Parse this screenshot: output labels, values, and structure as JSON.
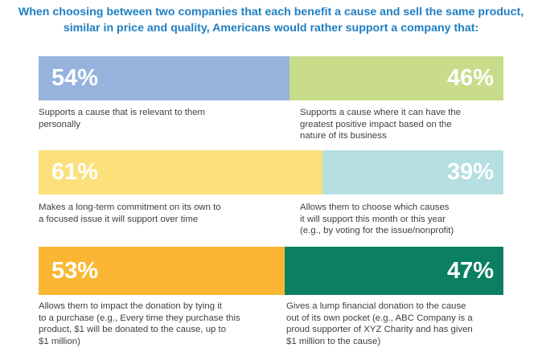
{
  "title_lines": [
    "When choosing between two companies that each benefit a cause and sell the same product,",
    "similar in price and quality, Americans would rather support a company that:"
  ],
  "chart_data": {
    "type": "bar",
    "orientation": "horizontal",
    "stacked": true,
    "title": "When choosing between two companies that each benefit a cause and sell the same product, similar in price and quality, Americans would rather support a company that:",
    "rows": [
      {
        "left": {
          "value": 54,
          "label": "54%",
          "color": "#97b3dd",
          "description": [
            "Supports a cause that is relevant to them",
            "personally"
          ]
        },
        "right": {
          "value": 46,
          "label": "46%",
          "color": "#c8dc8a",
          "description": [
            "Supports a cause where it can have the",
            "greatest positive impact based on the",
            "nature of its business"
          ]
        }
      },
      {
        "left": {
          "value": 61,
          "label": "61%",
          "color": "#fbe07c",
          "description": [
            "Makes a long-term commitment on its own to",
            "a focused issue it will support over time"
          ]
        },
        "right": {
          "value": 39,
          "label": "39%",
          "color": "#b5dfe0",
          "description": [
            "Allows them to choose which causes",
            "it will support this month or this year",
            "(e.g., by voting for the issue/nonprofit)"
          ]
        }
      },
      {
        "left": {
          "value": 53,
          "label": "53%",
          "color": "#fbb733",
          "description": [
            "Allows them to impact the donation by tying it",
            "to a purchase (e.g., Every time they purchase this",
            "product, $1 will be donated to the cause, up to",
            "$1 million)"
          ]
        },
        "right": {
          "value": 47,
          "label": "47%",
          "color": "#0b7f62",
          "description": [
            "Gives a lump financial donation to the cause",
            "out of its own pocket (e.g., ABC Company is a",
            "proud supporter of XYZ Charity and has given",
            "$1 million to the cause)"
          ]
        }
      }
    ]
  }
}
